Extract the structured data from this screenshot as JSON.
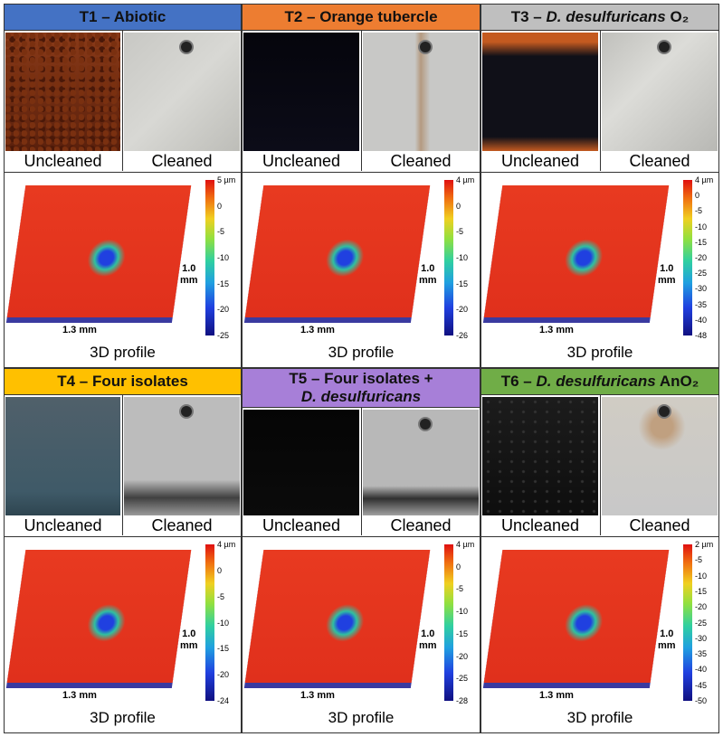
{
  "panels": [
    {
      "id": "T1",
      "title_prefix": "T1 – ",
      "title_plain": "Abiotic",
      "title_italic": "",
      "title_suffix": "",
      "title2": "",
      "bg": "#4472c4",
      "uncleaned_label": "Uncleaned",
      "cleaned_label": "Cleaned",
      "profile_label": "3D profile",
      "x_dim": "1.3 mm",
      "y_dim_top": "1.0",
      "y_dim_bottom": "mm",
      "colorbar": [
        "5 µm",
        "0",
        "-5",
        "-10",
        "-15",
        "-20",
        "-25"
      ]
    },
    {
      "id": "T2",
      "title_prefix": "T2 – ",
      "title_plain": "Orange tubercle",
      "title_italic": "",
      "title_suffix": "",
      "title2": "",
      "bg": "#ed7d31",
      "uncleaned_label": "Uncleaned",
      "cleaned_label": "Cleaned",
      "profile_label": "3D profile",
      "x_dim": "1.3 mm",
      "y_dim_top": "1.0",
      "y_dim_bottom": "mm",
      "colorbar": [
        "4 µm",
        "0",
        "-5",
        "-10",
        "-15",
        "-20",
        "-26"
      ]
    },
    {
      "id": "T3",
      "title_prefix": "T3 – ",
      "title_plain": "",
      "title_italic": "D. desulfuricans",
      "title_suffix": " O₂",
      "title2": "",
      "bg": "#bfbfbf",
      "uncleaned_label": "Uncleaned",
      "cleaned_label": "Cleaned",
      "profile_label": "3D profile",
      "x_dim": "1.3 mm",
      "y_dim_top": "1.0",
      "y_dim_bottom": "mm",
      "colorbar": [
        "4 µm",
        "0",
        "-5",
        "-10",
        "-15",
        "-20",
        "-25",
        "-30",
        "-35",
        "-40",
        "-48"
      ]
    },
    {
      "id": "T4",
      "title_prefix": "T4 – ",
      "title_plain": "Four isolates",
      "title_italic": "",
      "title_suffix": "",
      "title2": "",
      "bg": "#ffc000",
      "uncleaned_label": "Uncleaned",
      "cleaned_label": "Cleaned",
      "profile_label": "3D profile",
      "x_dim": "1.3 mm",
      "y_dim_top": "1.0",
      "y_dim_bottom": "mm",
      "colorbar": [
        "4 µm",
        "0",
        "-5",
        "-10",
        "-15",
        "-20",
        "-24"
      ]
    },
    {
      "id": "T5",
      "title_prefix": "T5 – ",
      "title_plain": "Four isolates +",
      "title_italic": "",
      "title_suffix": "",
      "title2": "D. desulfuricans",
      "bg": "#a77fd8",
      "uncleaned_label": "Uncleaned",
      "cleaned_label": "Cleaned",
      "profile_label": "3D profile",
      "x_dim": "1.3 mm",
      "y_dim_top": "1.0",
      "y_dim_bottom": "mm",
      "colorbar": [
        "4 µm",
        "0",
        "-5",
        "-10",
        "-15",
        "-20",
        "-25",
        "-28"
      ]
    },
    {
      "id": "T6",
      "title_prefix": "T6 – ",
      "title_plain": "",
      "title_italic": "D. desulfuricans",
      "title_suffix": " AnO₂",
      "title2": "",
      "bg": "#70ad47",
      "uncleaned_label": "Uncleaned",
      "cleaned_label": "Cleaned",
      "profile_label": "3D profile",
      "x_dim": "1.3 mm",
      "y_dim_top": "1.0",
      "y_dim_bottom": "mm",
      "colorbar": [
        "2 µm",
        "-5",
        "-10",
        "-15",
        "-20",
        "-25",
        "-30",
        "-35",
        "-40",
        "-45",
        "-50"
      ]
    }
  ]
}
